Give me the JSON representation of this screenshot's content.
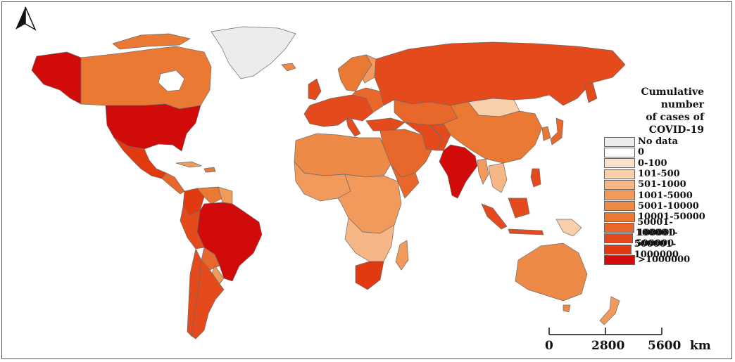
{
  "legend": {
    "title_line1": "Cumulative number",
    "title_line2": "of cases of COVID-19",
    "classes": [
      {
        "label": "No data",
        "color": "#ececec"
      },
      {
        "label": "0",
        "color": "#ffffff"
      },
      {
        "label": "0-100",
        "color": "#fbe3cf"
      },
      {
        "label": "101-500",
        "color": "#f9ceab"
      },
      {
        "label": "501-1000",
        "color": "#f6b685"
      },
      {
        "label": "1001-5000",
        "color": "#f29a5c"
      },
      {
        "label": "5001-10000",
        "color": "#ee8a48"
      },
      {
        "label": "10001-50000",
        "color": "#ea7a33"
      },
      {
        "label": "50001-100000",
        "color": "#e8672a"
      },
      {
        "label": "100001-500000",
        "color": "#e44a1b"
      },
      {
        "label": "500001-1000000",
        "color": "#e23a10"
      },
      {
        "label": ">1000000",
        "color": "#d10a0a"
      }
    ]
  },
  "scale_bar": {
    "tick_0": "0",
    "tick_1": "2800",
    "tick_2": "5600",
    "unit": "km"
  },
  "north_arrow": {
    "icon": "north-arrow-icon"
  }
}
